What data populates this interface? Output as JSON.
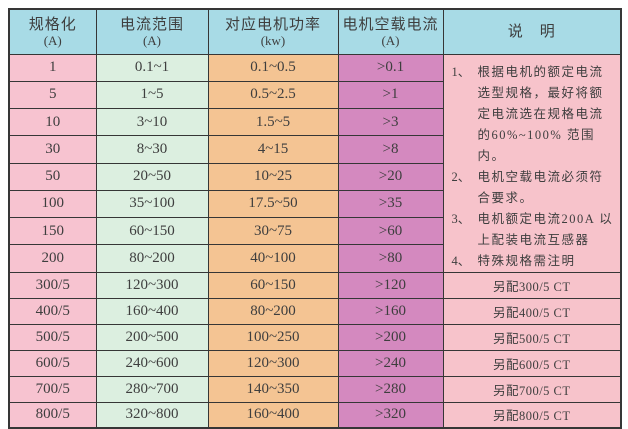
{
  "colors": {
    "header_bg": "#a8dbe6",
    "spec_bg": "#f7c3d0",
    "range_bg": "#dcefe0",
    "power_bg": "#f4c493",
    "noload_bg": "#d489bf",
    "notes_bg": "#f7c3cb",
    "grid": "#363636",
    "text": "#3e3e3e",
    "page_bg": "#ffffff"
  },
  "table": {
    "headers": [
      {
        "key": "spec",
        "title": "规格化",
        "unit": "(A)"
      },
      {
        "key": "range",
        "title": "电流范围",
        "unit": "(A)"
      },
      {
        "key": "power",
        "title": "对应电机功率",
        "unit": "(kw)"
      },
      {
        "key": "noload",
        "title": "电机空载电流",
        "unit": "(A)"
      },
      {
        "key": "notes",
        "title": "说　明",
        "unit": ""
      }
    ],
    "rows": [
      {
        "spec": "1",
        "range": "0.1~1",
        "power": "0.1~0.5",
        "noload": ">0.1",
        "note": ""
      },
      {
        "spec": "5",
        "range": "1~5",
        "power": "0.5~2.5",
        "noload": ">1",
        "note": ""
      },
      {
        "spec": "10",
        "range": "3~10",
        "power": "1.5~5",
        "noload": ">3",
        "note": ""
      },
      {
        "spec": "30",
        "range": "8~30",
        "power": "4~15",
        "noload": ">8",
        "note": ""
      },
      {
        "spec": "50",
        "range": "20~50",
        "power": "10~25",
        "noload": ">20",
        "note": ""
      },
      {
        "spec": "100",
        "range": "35~100",
        "power": "17.5~50",
        "noload": ">35",
        "note": ""
      },
      {
        "spec": "150",
        "range": "60~150",
        "power": "30~75",
        "noload": ">60",
        "note": ""
      },
      {
        "spec": "200",
        "range": "80~200",
        "power": "40~100",
        "noload": ">80",
        "note": ""
      },
      {
        "spec": "300/5",
        "range": "120~300",
        "power": "60~150",
        "noload": ">120",
        "note": "另配300/5 CT"
      },
      {
        "spec": "400/5",
        "range": "160~400",
        "power": "80~200",
        "noload": ">160",
        "note": "另配400/5 CT"
      },
      {
        "spec": "500/5",
        "range": "200~500",
        "power": "100~250",
        "noload": ">200",
        "note": "另配500/5 CT"
      },
      {
        "spec": "600/5",
        "range": "240~600",
        "power": "120~300",
        "noload": ">240",
        "note": "另配600/5 CT"
      },
      {
        "spec": "700/5",
        "range": "280~700",
        "power": "140~350",
        "noload": ">280",
        "note": "另配700/5 CT"
      },
      {
        "spec": "800/5",
        "range": "320~800",
        "power": "160~400",
        "noload": ">320",
        "note": "另配800/5 CT"
      }
    ],
    "merged_note_rowspan": 8,
    "general_notes": [
      {
        "num": "1、",
        "text": "根据电机的额定电流选型规格，最好将额定电流选在规格电流的60%~100% 范围内。"
      },
      {
        "num": "2、",
        "text": "电机空载电流必须符合要求。"
      },
      {
        "num": "3、",
        "text": "电机额定电流200A 以上配装电流互感器"
      },
      {
        "num": "4、",
        "text": "特殊规格需注明"
      }
    ]
  }
}
